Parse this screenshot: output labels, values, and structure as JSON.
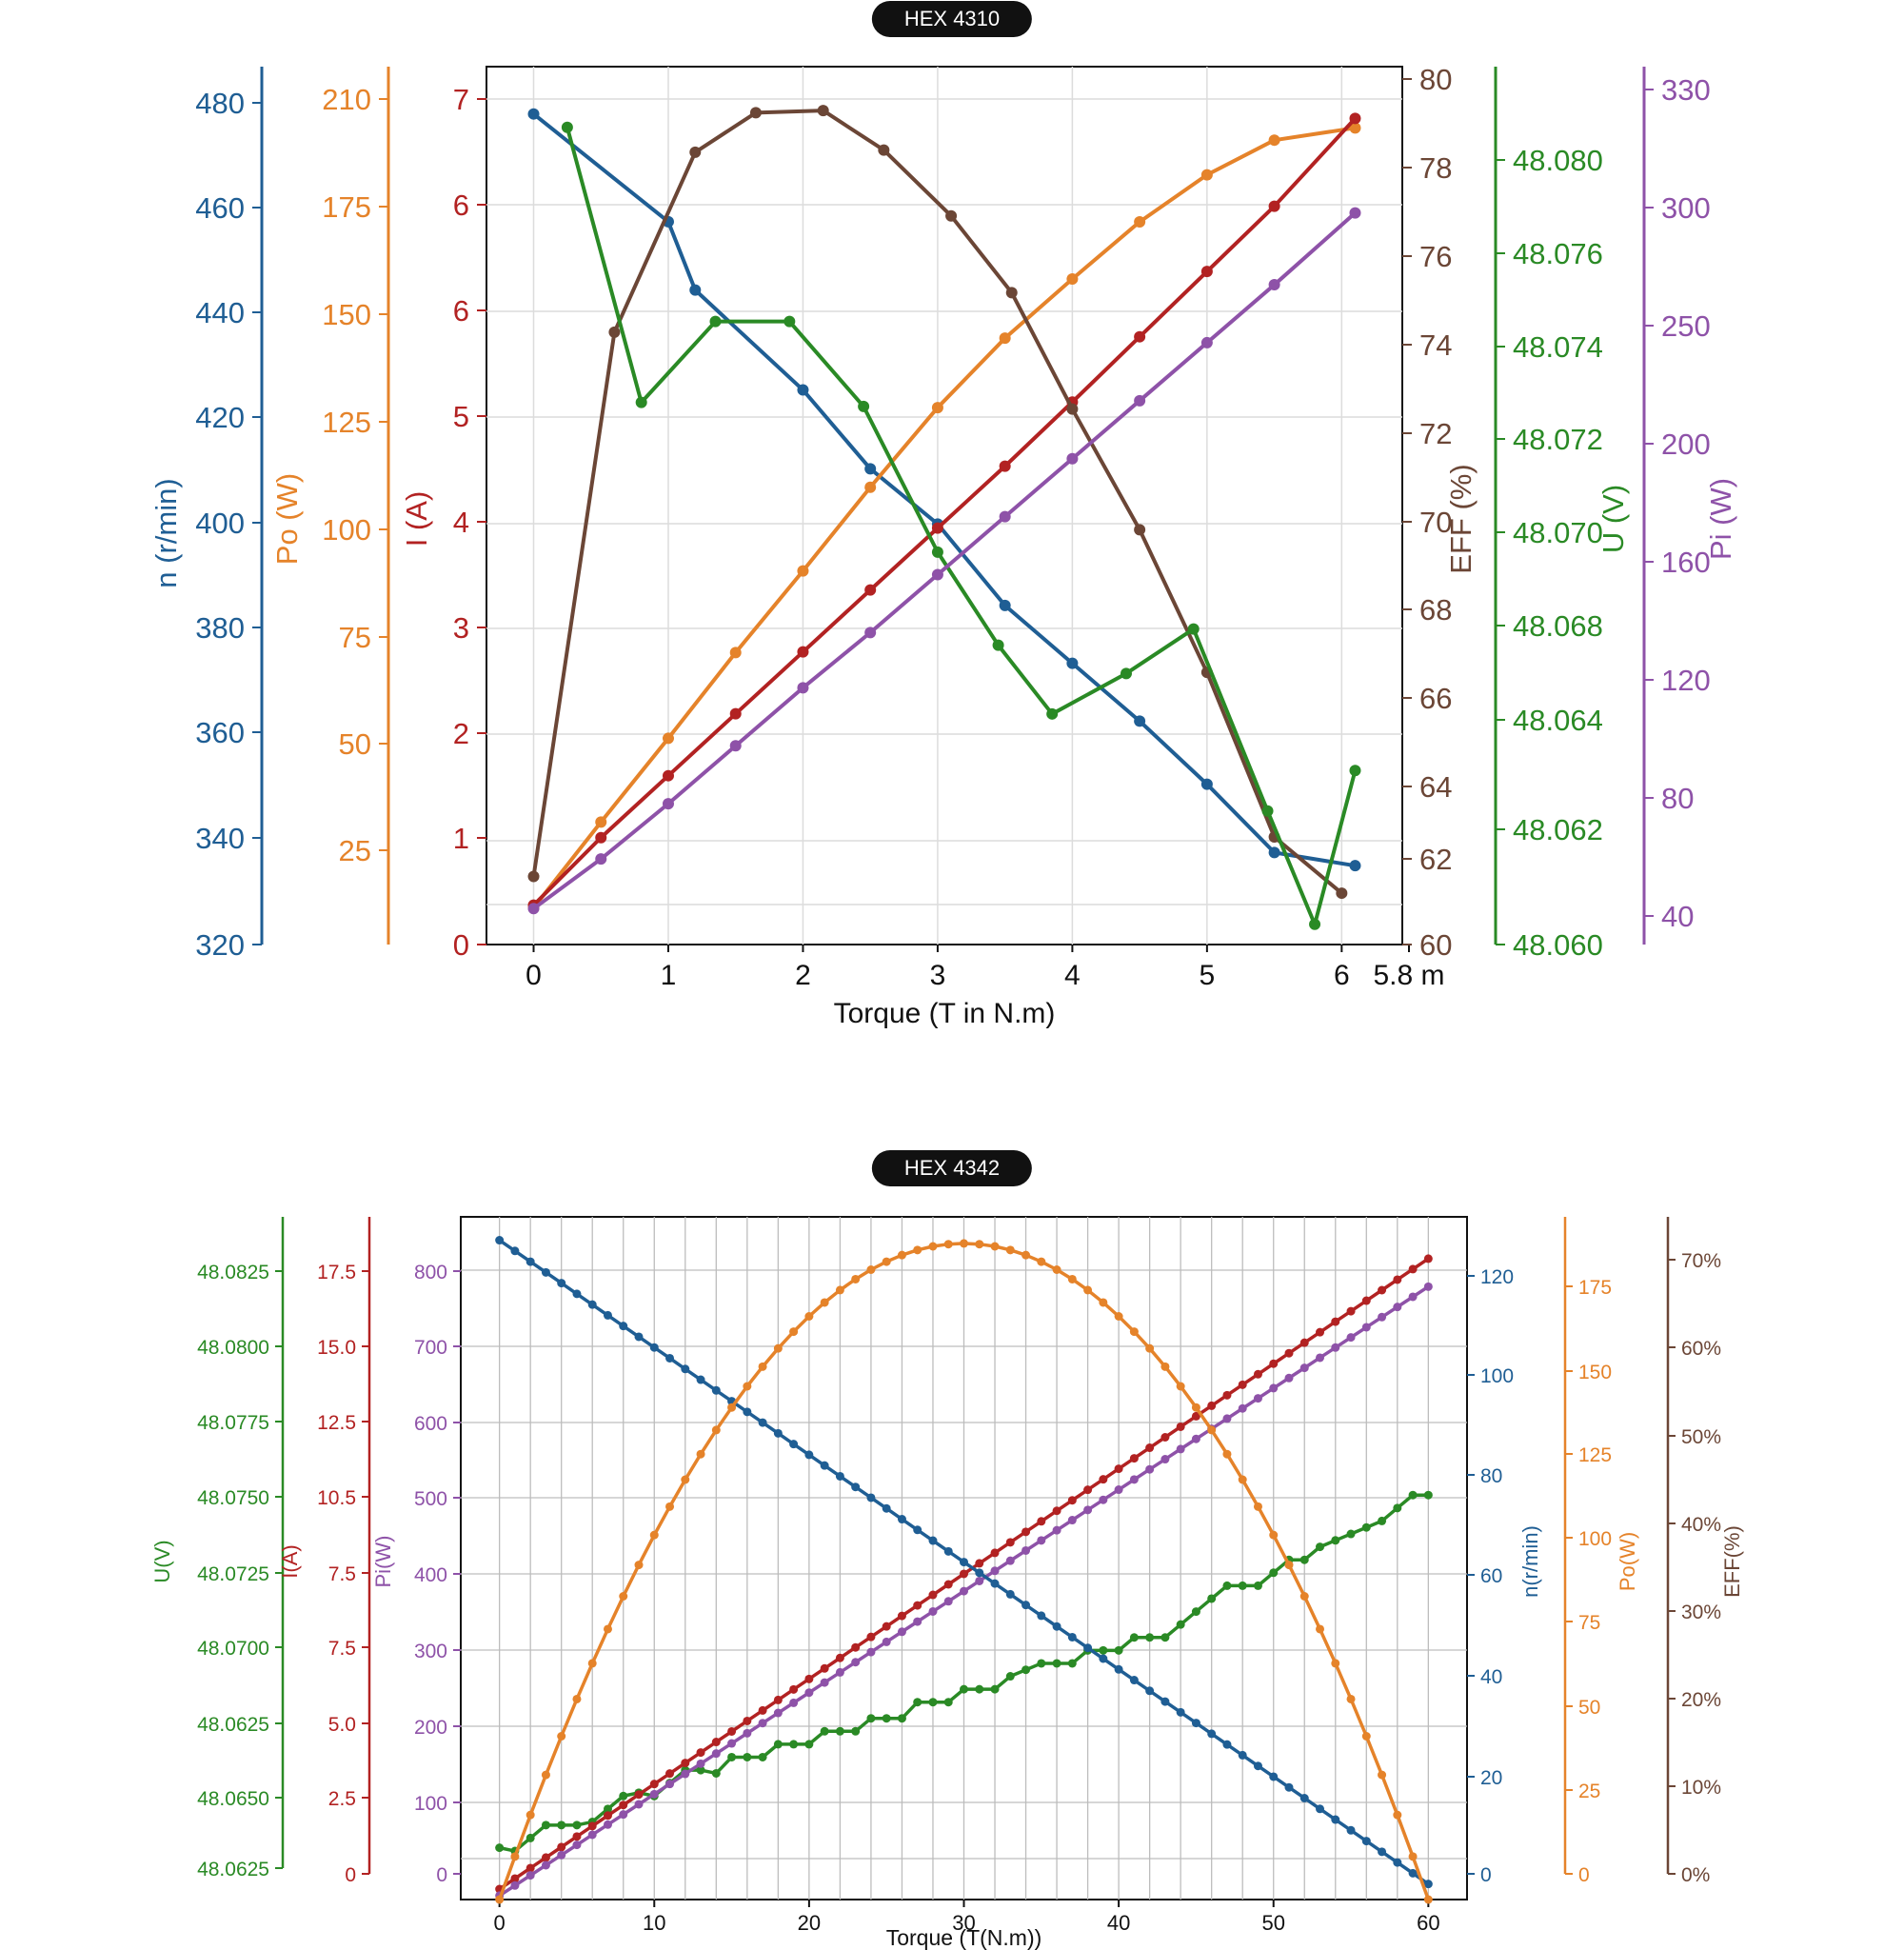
{
  "charts": [
    {
      "badge": "HEX 4310",
      "xlabel": "Torque (T in N.m)",
      "x_tick_labels": [
        "0",
        "1",
        "2",
        "3",
        "4",
        "5",
        "6",
        "5.8 m"
      ],
      "axes": {
        "n": {
          "label": "n (r/min)",
          "color": "#1f5e94",
          "ticks": [
            "480",
            "460",
            "440",
            "420",
            "400",
            "380",
            "360",
            "340",
            "320"
          ]
        },
        "po": {
          "label": "Po (W)",
          "color": "#e5832a",
          "ticks": [
            "210",
            "175",
            "150",
            "125",
            "100",
            "75",
            "50",
            "25"
          ]
        },
        "i": {
          "label": "I (A)",
          "color": "#b22222",
          "ticks": [
            "7",
            "6",
            "6",
            "5",
            "4",
            "3",
            "2",
            "1",
            "0"
          ]
        },
        "eff": {
          "label": "EFF (%)",
          "color": "#6b4636",
          "ticks": [
            "80",
            "78",
            "76",
            "74",
            "72",
            "70",
            "68",
            "66",
            "64",
            "62",
            "60"
          ]
        },
        "u": {
          "label": "U (V)",
          "color": "#2a8a25",
          "ticks": [
            "48.080",
            "48.076",
            "48.074",
            "48.072",
            "48.070",
            "48.068",
            "48.064",
            "48.062",
            "48.060"
          ]
        },
        "pi": {
          "label": "Pi (W)",
          "color": "#8e52a8",
          "ticks": [
            "330",
            "300",
            "250",
            "200",
            "160",
            "120",
            "80",
            "40"
          ]
        }
      }
    },
    {
      "badge": "HEX 4342",
      "xlabel": "Torque (T(N.m))",
      "x_tick_labels": [
        "0",
        "10",
        "20",
        "30",
        "40",
        "50",
        "60"
      ],
      "axes": {
        "u": {
          "label": "U(V)",
          "color": "#2a8a25",
          "ticks": [
            "48.0825",
            "48.0800",
            "48.0775",
            "48.0750",
            "48.0725",
            "48.0700",
            "48.0625",
            "48.0650",
            "48.0625"
          ]
        },
        "i": {
          "label": "I(A)",
          "color": "#b22222",
          "ticks": [
            "17.5",
            "15.0",
            "12.5",
            "10.5",
            "7.5",
            "7.5",
            "5.0",
            "2.5",
            "0"
          ]
        },
        "pi": {
          "label": "Pi(W)",
          "color": "#8e52a8",
          "ticks": [
            "800",
            "700",
            "600",
            "500",
            "400",
            "300",
            "200",
            "100",
            "0"
          ]
        },
        "n": {
          "label": "n(r/min)",
          "color": "#1f5e94",
          "ticks": [
            "120",
            "100",
            "80",
            "60",
            "40",
            "20",
            "0"
          ]
        },
        "po": {
          "label": "Po(W)",
          "color": "#e5832a",
          "ticks": [
            "175",
            "150",
            "125",
            "100",
            "75",
            "50",
            "25",
            "0"
          ]
        },
        "eff": {
          "label": "EFF(%)",
          "color": "#6b4636",
          "ticks": [
            "70%",
            "60%",
            "50%",
            "40%",
            "30%",
            "20%",
            "10%",
            "0%"
          ]
        }
      }
    }
  ],
  "chart_data": [
    {
      "type": "line",
      "title": "HEX 4310",
      "xlabel": "Torque (T in N.m)",
      "xlim": [
        -0.35,
        6.45
      ],
      "series": [
        {
          "name": "n (r/min)",
          "axis": "n",
          "color": "#1f5e94",
          "ylim": [
            320,
            487
          ],
          "x": [
            0,
            1,
            1.2,
            2,
            2.5,
            3,
            3.5,
            4,
            4.5,
            5,
            5.5,
            6.1
          ],
          "y": [
            478,
            457.5,
            444.5,
            425.5,
            410.5,
            400,
            384.5,
            373.5,
            362.5,
            350.5,
            337.5,
            335
          ]
        },
        {
          "name": "Po (W)",
          "axis": "po",
          "color": "#e5832a",
          "ylim": [
            0,
            215
          ],
          "x": [
            0,
            0.5,
            1,
            1.5,
            2,
            2.5,
            3,
            3.5,
            4,
            4.5,
            5,
            5.5,
            6.1
          ],
          "y": [
            9,
            30,
            50.5,
            71.5,
            91.5,
            112,
            131.5,
            148.5,
            163,
            177,
            188.5,
            197,
            200
          ]
        },
        {
          "name": "I (A)",
          "axis": "i",
          "color": "#b22222",
          "ylim": [
            0,
            7.8
          ],
          "x": [
            0,
            0.5,
            1,
            1.5,
            2,
            2.5,
            3,
            3.5,
            4,
            4.5,
            5,
            5.5,
            6.1
          ],
          "y": [
            0.35,
            0.95,
            1.5,
            2.05,
            2.6,
            3.15,
            3.7,
            4.25,
            4.82,
            5.4,
            5.98,
            6.56,
            7.34
          ]
        },
        {
          "name": "EFF (%)",
          "axis": "eff",
          "color": "#6b4636",
          "ylim": [
            60,
            80
          ],
          "x": [
            0,
            0.6,
            1.2,
            1.65,
            2.15,
            2.6,
            3.1,
            3.55,
            4,
            4.5,
            5,
            5.5,
            6
          ],
          "y": [
            61.55,
            73.95,
            78.05,
            78.95,
            79,
            78.1,
            76.6,
            74.85,
            72.2,
            69.45,
            66.2,
            62.45,
            61.17
          ]
        },
        {
          "name": "U (V)",
          "axis": "u",
          "color": "#2a8a25",
          "ylim": [
            48.06,
            48.0817
          ],
          "x": [
            0.25,
            0.8,
            1.35,
            1.9,
            2.45,
            3,
            3.45,
            3.85,
            4.4,
            4.9,
            5.45,
            5.8,
            6.1
          ],
          "y": [
            48.0802,
            48.0734,
            48.0754,
            48.0754,
            48.0733,
            48.0697,
            48.0674,
            48.0657,
            48.0667,
            48.0678,
            48.0633,
            48.0605,
            48.0643
          ]
        },
        {
          "name": "Pi (W)",
          "axis": "pi",
          "color": "#8e52a8",
          "ylim": [
            19,
            337
          ],
          "x": [
            0,
            0.5,
            1,
            1.5,
            2,
            2.5,
            3,
            3.5,
            4,
            4.5,
            5,
            5.5,
            6.1
          ],
          "y": [
            32,
            50,
            70,
            91,
            112,
            132,
            153,
            174,
            195,
            216,
            237,
            258,
            284
          ]
        }
      ]
    },
    {
      "type": "line",
      "title": "HEX 4342",
      "xlabel": "Torque (T(N.m))",
      "xlim": [
        -2.5,
        62.5
      ],
      "series": [
        {
          "name": "U(V)",
          "axis": "u",
          "color": "#2a8a25",
          "ylim": [
            48.0625,
            48.0836
          ],
          "x": [
            0,
            1,
            2,
            3,
            4,
            5,
            6,
            7,
            8,
            9,
            10,
            11,
            12,
            13,
            14,
            15,
            16,
            17,
            18,
            19,
            20,
            21,
            22,
            23,
            24,
            25,
            26,
            27,
            28,
            29,
            30,
            31,
            32,
            33,
            34,
            35,
            36,
            37,
            38,
            39,
            40,
            41,
            42,
            43,
            44,
            45,
            46,
            47,
            48,
            49,
            50,
            51,
            52,
            53,
            54,
            55,
            56,
            57,
            58,
            59,
            60
          ],
          "y": [
            48.0641,
            48.064,
            48.0644,
            48.0648,
            48.0648,
            48.0648,
            48.0649,
            48.0653,
            48.0657,
            48.0658,
            48.0657,
            48.0661,
            48.0665,
            48.0665,
            48.0664,
            48.0669,
            48.0669,
            48.0669,
            48.0673,
            48.0673,
            48.0673,
            48.0677,
            48.0677,
            48.0677,
            48.0681,
            48.0681,
            48.0681,
            48.0686,
            48.0686,
            48.0686,
            48.069,
            48.069,
            48.069,
            48.0694,
            48.0696,
            48.0698,
            48.0698,
            48.0698,
            48.0702,
            48.0702,
            48.0702,
            48.0706,
            48.0706,
            48.0706,
            48.071,
            48.0714,
            48.0718,
            48.0722,
            48.0722,
            48.0722,
            48.0726,
            48.073,
            48.073,
            48.0734,
            48.0736,
            48.0738,
            48.074,
            48.0742,
            48.0746,
            48.075,
            48.075
          ]
        },
        {
          "name": "I(A)",
          "axis": "i",
          "color": "#b22222",
          "ylim": [
            0,
            19.6
          ],
          "x": [
            0,
            60
          ],
          "y": [
            0.3,
            18.4
          ],
          "markers": 60
        },
        {
          "name": "Pi(W)",
          "axis": "pi",
          "color": "#8e52a8",
          "ylim": [
            0,
            880
          ],
          "x": [
            0,
            60
          ],
          "y": [
            5,
            790
          ],
          "markers": 60
        },
        {
          "name": "n(r/min)",
          "axis": "n",
          "color": "#1f5e94",
          "ylim": [
            0,
            131.5
          ],
          "x": [
            0,
            60
          ],
          "y": [
            127,
            3
          ],
          "markers": 60
        },
        {
          "name": "Po(W)",
          "axis": "po",
          "color": "#e5832a",
          "ylim": [
            0,
            192.5
          ],
          "x": [
            0,
            60
          ],
          "y": [
            0,
            0
          ],
          "curve": "parabola",
          "peak": {
            "x": 30,
            "y": 185
          },
          "markers": 60
        },
        {
          "name": "EFF(%)",
          "axis": "eff",
          "color": "#6b4636",
          "ylim": [
            0,
            75
          ],
          "x": [],
          "y": []
        }
      ]
    }
  ]
}
